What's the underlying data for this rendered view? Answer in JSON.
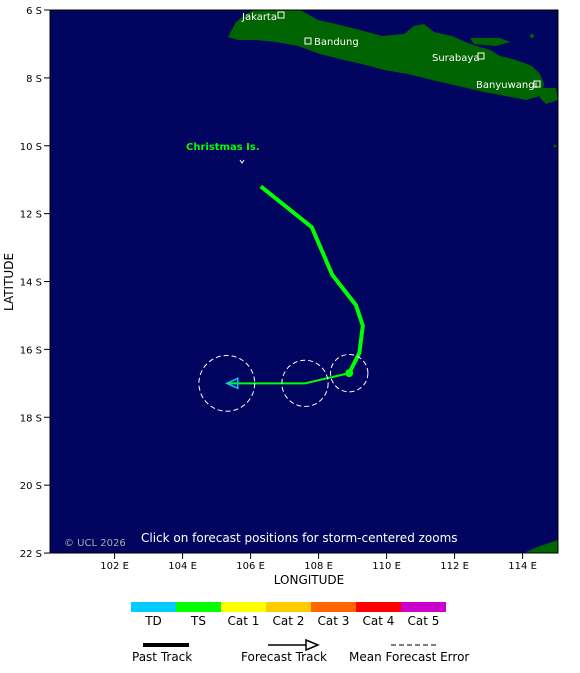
{
  "map": {
    "lat_ticks": [
      "6 S",
      "8 S",
      "10 S",
      "12 S",
      "14 S",
      "16 S",
      "18 S",
      "20 S",
      "22 S"
    ],
    "lon_ticks": [
      "102 E",
      "104 E",
      "106 E",
      "108 E",
      "110 E",
      "112 E",
      "114 E"
    ],
    "xlabel": "LONGITUDE",
    "ylabel": "LATITUDE",
    "copyright": "© UCL 2026",
    "click_hint": "Click on forecast positions for storm-centered zooms",
    "places": {
      "jakarta": "Jakarta",
      "bandung": "Bandung",
      "surabaya": "Surabaya",
      "banyuwangi": "Banyuwangi",
      "christmas": "Christmas Is."
    },
    "colors": {
      "ocean": "#020560",
      "land": "#006400",
      "track": "#00ff00",
      "forecast_arrow_head": "#00c8ff",
      "label_green": "#00ff00"
    }
  },
  "track": {
    "past_track_lonlat": [
      [
        106.3,
        11.2
      ],
      [
        107.8,
        12.4
      ],
      [
        108.4,
        13.8
      ],
      [
        109.1,
        14.7
      ],
      [
        109.3,
        15.3
      ],
      [
        109.2,
        16.1
      ],
      [
        108.9,
        16.7
      ]
    ],
    "forecast_positions_lonlat": [
      [
        108.9,
        16.7
      ],
      [
        107.6,
        17.0
      ],
      [
        105.3,
        17.0
      ]
    ],
    "error_radius_deg": [
      0.55,
      0.68,
      0.82
    ]
  },
  "legend": {
    "categories": [
      {
        "label": "TD",
        "color": "#00ccff"
      },
      {
        "label": "TS",
        "color": "#00ff00"
      },
      {
        "label": "Cat 1",
        "color": "#ffff00"
      },
      {
        "label": "Cat 2",
        "color": "#ffcc00"
      },
      {
        "label": "Cat 3",
        "color": "#ff6600"
      },
      {
        "label": "Cat 4",
        "color": "#ff0000"
      },
      {
        "label": "Cat 5",
        "color": "#cc00cc"
      }
    ],
    "past_track": "Past Track",
    "forecast_track": "Forecast Track",
    "mean_error": "Mean Forecast Error"
  }
}
